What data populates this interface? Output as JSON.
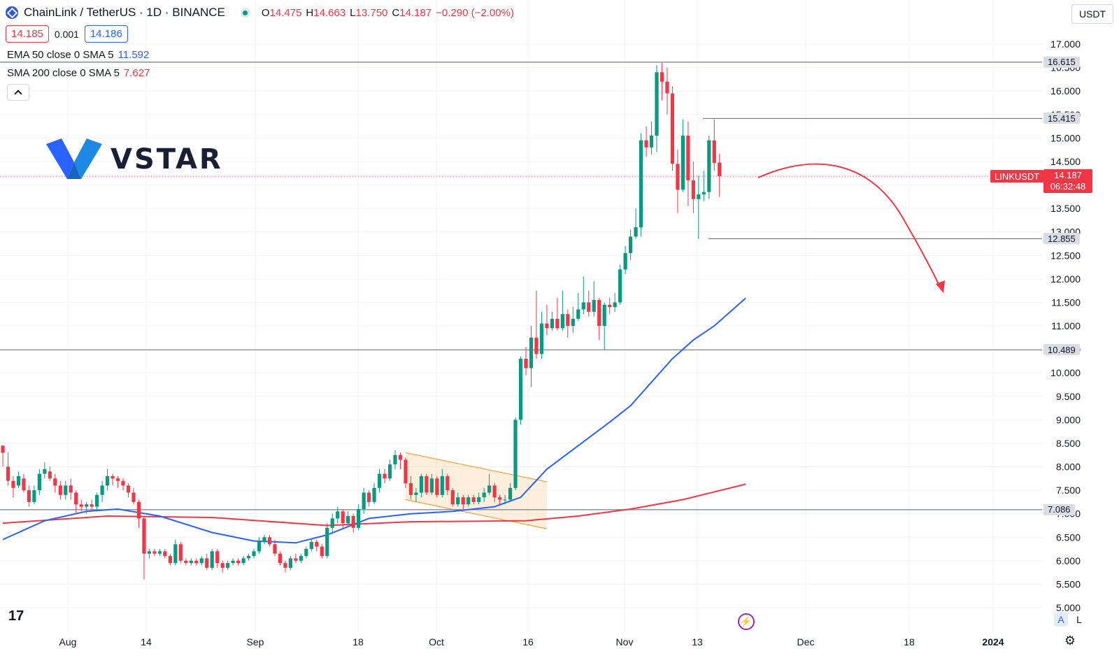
{
  "header": {
    "symbol_title": "ChainLink / TetherUS · 1D · BINANCE",
    "ohlc": [
      {
        "k": "O",
        "v": "14.475"
      },
      {
        "k": "H",
        "v": "14.663"
      },
      {
        "k": "L",
        "v": "13.750"
      },
      {
        "k": "C",
        "v": "14.187"
      },
      {
        "k": "",
        "v": "−0.290 (−2.00%)"
      }
    ],
    "sell_price": "14.185",
    "spread": "0.001",
    "buy_price": "14.186",
    "currency": "USDT"
  },
  "indicators": [
    {
      "name": "EMA 50 close 0 SMA 5",
      "value": "11.592",
      "color": "#2962ff"
    },
    {
      "name": "SMA 200 close 0 SMA 5",
      "value": "7.627",
      "color": "#f23645"
    }
  ],
  "logo": {
    "text": "VSTAR",
    "colors": [
      "#2962ff",
      "#1e88e5"
    ]
  },
  "price_axis": {
    "labels": [
      "17.000",
      "16.500",
      "16.000",
      "15.500",
      "15.000",
      "14.500",
      "14.000",
      "13.500",
      "13.000",
      "12.500",
      "12.000",
      "11.500",
      "11.000",
      "10.500",
      "10.000",
      "9.500",
      "9.000",
      "8.500",
      "8.000",
      "7.500",
      "7.000",
      "6.500",
      "6.000",
      "5.500",
      "5.000"
    ],
    "levels": [
      {
        "value": 16.615,
        "label": "16.615"
      },
      {
        "value": 15.415,
        "label": "15.415"
      },
      {
        "value": 12.855,
        "label": "12.855"
      },
      {
        "value": 10.489,
        "label": "10.489"
      },
      {
        "value": 7.086,
        "label": "7.086"
      }
    ],
    "last_symbol": "LINKUSDT",
    "last_price": "14.187",
    "countdown": "06:32:48"
  },
  "time_axis": {
    "labels": [
      "Aug",
      "14",
      "Sep",
      "18",
      "Oct",
      "16",
      "Nov",
      "13",
      "Dec",
      "18",
      "2024"
    ]
  },
  "bottom": {
    "tv_logo": "17",
    "bolt_icon": "⚡",
    "auto_scale": "A",
    "log_scale": "L"
  },
  "colors": {
    "up": "#089981",
    "down": "#f23645",
    "ema": "#2962ff",
    "sma": "#f23645",
    "arrow": "#f23645",
    "channel": "#f7931a"
  },
  "chart_data": {
    "type": "candlestick",
    "title": "ChainLink / TetherUS · 1D · BINANCE",
    "ylim": [
      5.0,
      17.0
    ],
    "candles": [
      [
        8.45,
        8.3,
        8.45,
        8.0
      ],
      [
        8.0,
        7.7,
        8.3,
        7.6
      ],
      [
        7.7,
        7.55,
        7.8,
        7.35
      ],
      [
        7.6,
        7.8,
        7.9,
        7.55
      ],
      [
        7.75,
        7.5,
        7.85,
        7.45
      ],
      [
        7.5,
        7.25,
        7.6,
        7.15
      ],
      [
        7.25,
        7.5,
        7.6,
        7.2
      ],
      [
        7.5,
        7.85,
        7.95,
        7.4
      ],
      [
        7.85,
        7.95,
        8.1,
        7.75
      ],
      [
        7.9,
        7.75,
        8.0,
        7.7
      ],
      [
        7.75,
        7.6,
        7.85,
        7.45
      ],
      [
        7.6,
        7.4,
        7.7,
        7.3
      ],
      [
        7.4,
        7.6,
        7.7,
        7.3
      ],
      [
        7.6,
        7.45,
        7.75,
        7.3
      ],
      [
        7.45,
        7.2,
        7.5,
        7.0
      ],
      [
        7.2,
        7.15,
        7.3,
        7.05
      ],
      [
        7.15,
        7.2,
        7.25,
        7.0
      ],
      [
        7.2,
        7.15,
        7.3,
        7.05
      ],
      [
        7.15,
        7.4,
        7.45,
        7.05
      ],
      [
        7.4,
        7.6,
        7.7,
        7.25
      ],
      [
        7.6,
        7.8,
        7.95,
        7.5
      ],
      [
        7.8,
        7.75,
        7.85,
        7.6
      ],
      [
        7.75,
        7.7,
        7.8,
        7.55
      ],
      [
        7.7,
        7.6,
        7.75,
        7.5
      ],
      [
        7.6,
        7.45,
        7.65,
        7.35
      ],
      [
        7.45,
        7.25,
        7.55,
        7.2
      ],
      [
        7.25,
        6.9,
        7.3,
        6.7
      ],
      [
        6.9,
        6.15,
        6.95,
        5.6
      ],
      [
        6.15,
        6.2,
        6.25,
        6.05
      ],
      [
        6.2,
        6.15,
        6.25,
        6.1
      ],
      [
        6.15,
        6.2,
        6.25,
        6.1
      ],
      [
        6.2,
        6.1,
        6.25,
        6.05
      ],
      [
        6.1,
        5.95,
        6.15,
        5.9
      ],
      [
        5.95,
        6.35,
        6.45,
        5.9
      ],
      [
        6.35,
        6.0,
        6.4,
        5.95
      ],
      [
        6.0,
        5.95,
        6.05,
        5.9
      ],
      [
        5.95,
        6.0,
        6.05,
        5.9
      ],
      [
        6.0,
        5.95,
        6.05,
        5.9
      ],
      [
        5.95,
        6.05,
        6.1,
        5.9
      ],
      [
        6.05,
        5.85,
        6.15,
        5.8
      ],
      [
        5.85,
        6.2,
        6.25,
        5.8
      ],
      [
        6.2,
        5.95,
        6.25,
        5.85
      ],
      [
        5.95,
        5.85,
        6.0,
        5.75
      ],
      [
        5.85,
        5.95,
        6.0,
        5.8
      ],
      [
        5.95,
        6.0,
        6.05,
        5.9
      ],
      [
        6.0,
        5.95,
        6.05,
        5.9
      ],
      [
        5.95,
        6.05,
        6.1,
        5.9
      ],
      [
        6.05,
        6.1,
        6.15,
        6.0
      ],
      [
        6.1,
        6.2,
        6.25,
        6.05
      ],
      [
        6.2,
        6.4,
        6.5,
        6.15
      ],
      [
        6.4,
        6.5,
        6.55,
        6.35
      ],
      [
        6.5,
        6.35,
        6.55,
        6.3
      ],
      [
        6.35,
        6.15,
        6.45,
        6.1
      ],
      [
        6.15,
        5.95,
        6.2,
        5.9
      ],
      [
        5.95,
        5.85,
        6.0,
        5.75
      ],
      [
        5.85,
        6.05,
        6.1,
        5.8
      ],
      [
        6.05,
        6.0,
        6.15,
        5.95
      ],
      [
        6.0,
        6.1,
        6.15,
        5.95
      ],
      [
        6.1,
        6.25,
        6.3,
        6.05
      ],
      [
        6.25,
        6.4,
        6.45,
        6.2
      ],
      [
        6.4,
        6.3,
        6.45,
        6.2
      ],
      [
        6.3,
        6.1,
        6.35,
        6.05
      ],
      [
        6.1,
        6.7,
        6.8,
        6.05
      ],
      [
        6.7,
        6.9,
        7.0,
        6.6
      ],
      [
        6.9,
        7.05,
        7.15,
        6.8
      ],
      [
        7.05,
        6.8,
        7.1,
        6.7
      ],
      [
        6.8,
        6.95,
        7.05,
        6.75
      ],
      [
        6.95,
        6.7,
        7.0,
        6.6
      ],
      [
        6.7,
        7.1,
        7.2,
        6.65
      ],
      [
        7.1,
        7.45,
        7.55,
        7.0
      ],
      [
        7.45,
        7.25,
        7.5,
        7.15
      ],
      [
        7.25,
        7.55,
        7.65,
        7.2
      ],
      [
        7.55,
        7.85,
        7.95,
        7.45
      ],
      [
        7.85,
        7.75,
        7.95,
        7.65
      ],
      [
        7.75,
        8.05,
        8.15,
        7.7
      ],
      [
        8.05,
        8.25,
        8.35,
        7.95
      ],
      [
        8.25,
        8.15,
        8.3,
        7.95
      ],
      [
        8.15,
        7.65,
        8.2,
        7.55
      ],
      [
        7.65,
        7.4,
        7.8,
        7.3
      ],
      [
        7.4,
        7.45,
        7.55,
        7.25
      ],
      [
        7.45,
        7.8,
        7.85,
        7.35
      ],
      [
        7.8,
        7.45,
        7.85,
        7.4
      ],
      [
        7.45,
        7.75,
        7.85,
        7.4
      ],
      [
        7.75,
        7.4,
        7.8,
        7.35
      ],
      [
        7.4,
        7.8,
        7.95,
        7.35
      ],
      [
        7.8,
        7.5,
        7.85,
        7.4
      ],
      [
        7.5,
        7.2,
        7.55,
        7.15
      ],
      [
        7.2,
        7.35,
        7.45,
        7.15
      ],
      [
        7.35,
        7.2,
        7.4,
        7.1
      ],
      [
        7.2,
        7.35,
        7.4,
        7.15
      ],
      [
        7.35,
        7.25,
        7.4,
        7.2
      ],
      [
        7.25,
        7.35,
        7.45,
        7.2
      ],
      [
        7.35,
        7.45,
        7.55,
        7.25
      ],
      [
        7.45,
        7.6,
        7.85,
        7.4
      ],
      [
        7.6,
        7.35,
        7.65,
        7.25
      ],
      [
        7.35,
        7.3,
        7.4,
        7.2
      ],
      [
        7.3,
        7.3,
        7.4,
        7.2
      ],
      [
        7.3,
        7.55,
        7.65,
        7.25
      ],
      [
        7.55,
        9.0,
        9.05,
        7.5
      ],
      [
        9.0,
        10.3,
        10.35,
        8.9
      ],
      [
        10.3,
        10.1,
        10.55,
        9.95
      ],
      [
        10.1,
        10.75,
        11.0,
        9.7
      ],
      [
        10.75,
        10.4,
        11.75,
        10.3
      ],
      [
        10.4,
        11.05,
        11.3,
        10.3
      ],
      [
        11.05,
        10.95,
        11.45,
        10.8
      ],
      [
        10.95,
        11.15,
        11.3,
        10.9
      ],
      [
        11.15,
        10.95,
        11.6,
        10.9
      ],
      [
        10.95,
        11.25,
        11.75,
        10.9
      ],
      [
        11.25,
        11.0,
        11.35,
        10.75
      ],
      [
        11.0,
        11.15,
        11.4,
        10.85
      ],
      [
        11.15,
        11.35,
        11.7,
        11.1
      ],
      [
        11.35,
        11.5,
        12.05,
        11.25
      ],
      [
        11.5,
        11.3,
        11.75,
        11.2
      ],
      [
        11.3,
        11.55,
        11.95,
        11.2
      ],
      [
        11.55,
        11.0,
        11.6,
        10.7
      ],
      [
        11.0,
        11.45,
        11.5,
        10.5
      ],
      [
        11.45,
        11.4,
        11.6,
        11.25
      ],
      [
        11.4,
        11.5,
        11.7,
        11.3
      ],
      [
        11.5,
        12.2,
        12.3,
        11.45
      ],
      [
        12.2,
        12.55,
        12.7,
        12.1
      ],
      [
        12.55,
        12.9,
        13.05,
        12.4
      ],
      [
        12.9,
        13.1,
        13.5,
        12.85
      ],
      [
        13.1,
        14.95,
        15.1,
        12.9
      ],
      [
        14.95,
        14.8,
        15.25,
        14.6
      ],
      [
        14.8,
        15.05,
        15.35,
        14.65
      ],
      [
        15.05,
        16.4,
        16.55,
        14.7
      ],
      [
        16.4,
        16.2,
        16.6,
        15.8
      ],
      [
        16.2,
        15.95,
        16.5,
        15.5
      ],
      [
        15.95,
        14.45,
        16.1,
        14.3
      ],
      [
        14.45,
        13.9,
        14.75,
        13.4
      ],
      [
        13.9,
        15.05,
        15.4,
        13.85
      ],
      [
        15.05,
        14.1,
        15.35,
        13.55
      ],
      [
        14.1,
        13.7,
        14.5,
        13.4
      ],
      [
        13.7,
        13.8,
        14.2,
        12.85
      ],
      [
        13.8,
        13.85,
        14.3,
        13.65
      ],
      [
        13.85,
        14.95,
        15.05,
        13.7
      ],
      [
        14.95,
        14.47,
        15.4,
        14.3
      ],
      [
        14.475,
        14.187,
        14.663,
        13.75
      ]
    ],
    "ema50": [
      [
        0,
        6.45
      ],
      [
        8,
        6.85
      ],
      [
        16,
        7.05
      ],
      [
        22,
        7.1
      ],
      [
        30,
        6.95
      ],
      [
        40,
        6.6
      ],
      [
        48,
        6.42
      ],
      [
        56,
        6.38
      ],
      [
        62,
        6.55
      ],
      [
        70,
        6.9
      ],
      [
        78,
        7.0
      ],
      [
        86,
        7.05
      ],
      [
        94,
        7.15
      ],
      [
        99,
        7.35
      ],
      [
        104,
        7.95
      ],
      [
        110,
        8.45
      ],
      [
        116,
        8.95
      ],
      [
        120,
        9.3
      ],
      [
        124,
        9.8
      ],
      [
        128,
        10.3
      ],
      [
        132,
        10.7
      ],
      [
        136,
        11.0
      ],
      [
        142,
        11.59
      ]
    ],
    "sma200": [
      [
        0,
        6.8
      ],
      [
        20,
        6.95
      ],
      [
        40,
        6.92
      ],
      [
        62,
        6.75
      ],
      [
        78,
        6.83
      ],
      [
        100,
        6.85
      ],
      [
        110,
        6.95
      ],
      [
        120,
        7.1
      ],
      [
        130,
        7.3
      ],
      [
        142,
        7.63
      ]
    ],
    "channel": {
      "upper": [
        [
          77,
          8.3
        ],
        [
          104,
          7.68
        ]
      ],
      "lower": [
        [
          77,
          7.3
        ],
        [
          104,
          6.68
        ]
      ]
    }
  }
}
